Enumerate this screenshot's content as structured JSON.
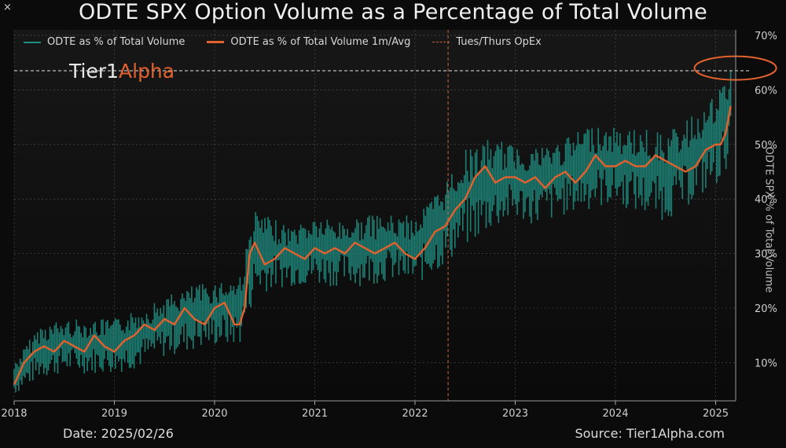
{
  "ui": {
    "close_symbol": "×"
  },
  "colors": {
    "background": "#0b0b0b",
    "daily": "#1f8c80",
    "avg": "#e2612d",
    "opex": "#c8643a",
    "grid": "#8a8a8a"
  },
  "brand": {
    "part1": "Tier1",
    "part2": "Alpha"
  },
  "footer": {
    "date": "Date: 2025/02/26",
    "source": "Source: Tier1Alpha.com"
  },
  "chart_data": {
    "type": "line",
    "title": "ODTE SPX Option Volume as a Percentage of Total Volume",
    "ylabel": "ODTE SPX % of Total Volume",
    "xlabel": "",
    "ylim": [
      3,
      71
    ],
    "xlim": [
      2018.0,
      2025.2
    ],
    "y_ticks": [
      "10%",
      "20%",
      "30%",
      "40%",
      "50%",
      "60%",
      "70%"
    ],
    "x_ticks": [
      "2018",
      "2019",
      "2020",
      "2021",
      "2022",
      "2023",
      "2024",
      "2025"
    ],
    "grid": true,
    "legend": [
      "ODTE as % of Total Volume",
      "ODTE as % of Total Volume 1m/Avg",
      "Tues/Thurs OpEx"
    ],
    "legend_position": "top-left",
    "vline": {
      "x": 2022.33,
      "label": "Tues/Thurs OpEx"
    },
    "hline": {
      "y": 63.5
    },
    "highlight": {
      "x": 2025.15,
      "y": 64
    },
    "series": [
      {
        "name": "ODTE as % of Total Volume 1m/Avg",
        "x": [
          2018.0,
          2018.1,
          2018.2,
          2018.3,
          2018.4,
          2018.5,
          2018.6,
          2018.7,
          2018.8,
          2018.9,
          2019.0,
          2019.1,
          2019.2,
          2019.3,
          2019.4,
          2019.5,
          2019.6,
          2019.7,
          2019.8,
          2019.9,
          2020.0,
          2020.1,
          2020.2,
          2020.25,
          2020.3,
          2020.35,
          2020.4,
          2020.5,
          2020.6,
          2020.7,
          2020.8,
          2020.9,
          2021.0,
          2021.1,
          2021.2,
          2021.3,
          2021.4,
          2021.5,
          2021.6,
          2021.7,
          2021.8,
          2021.9,
          2022.0,
          2022.1,
          2022.2,
          2022.3,
          2022.4,
          2022.5,
          2022.6,
          2022.7,
          2022.8,
          2022.9,
          2023.0,
          2023.1,
          2023.2,
          2023.3,
          2023.4,
          2023.5,
          2023.6,
          2023.7,
          2023.8,
          2023.9,
          2024.0,
          2024.1,
          2024.2,
          2024.3,
          2024.4,
          2024.5,
          2024.6,
          2024.7,
          2024.8,
          2024.9,
          2025.0,
          2025.05,
          2025.1,
          2025.15
        ],
        "values": [
          6,
          10,
          12,
          13,
          12,
          14,
          13,
          12,
          15,
          13,
          12,
          14,
          15,
          17,
          16,
          18,
          17,
          20,
          18,
          17,
          20,
          21,
          17,
          17,
          20,
          30,
          32,
          28,
          29,
          31,
          30,
          29,
          31,
          30,
          31,
          30,
          32,
          31,
          30,
          31,
          32,
          30,
          29,
          31,
          34,
          35,
          38,
          40,
          44,
          46,
          43,
          44,
          44,
          43,
          44,
          42,
          44,
          45,
          43,
          45,
          48,
          46,
          46,
          47,
          46,
          46,
          48,
          47,
          46,
          45,
          46,
          49,
          50,
          50,
          52,
          57
        ]
      }
    ],
    "daily_band": {
      "name": "ODTE as % of Total Volume",
      "x": [
        2018.0,
        2018.25,
        2018.5,
        2018.75,
        2019.0,
        2019.25,
        2019.5,
        2019.75,
        2020.0,
        2020.25,
        2020.4,
        2020.5,
        2020.75,
        2021.0,
        2021.25,
        2021.5,
        2021.75,
        2022.0,
        2022.25,
        2022.5,
        2022.75,
        2023.0,
        2023.25,
        2023.5,
        2023.75,
        2024.0,
        2024.25,
        2024.5,
        2024.75,
        2025.0,
        2025.15
      ],
      "low": [
        4,
        7,
        8,
        8,
        8,
        9,
        11,
        12,
        13,
        13,
        22,
        23,
        24,
        24,
        24,
        24,
        25,
        24,
        27,
        31,
        34,
        36,
        35,
        37,
        38,
        39,
        37,
        36,
        39,
        42,
        47
      ],
      "high": [
        10,
        17,
        18,
        18,
        18,
        20,
        22,
        24,
        25,
        26,
        38,
        37,
        35,
        37,
        36,
        37,
        37,
        37,
        42,
        49,
        51,
        50,
        50,
        51,
        54,
        53,
        53,
        52,
        55,
        59,
        64
      ]
    }
  }
}
